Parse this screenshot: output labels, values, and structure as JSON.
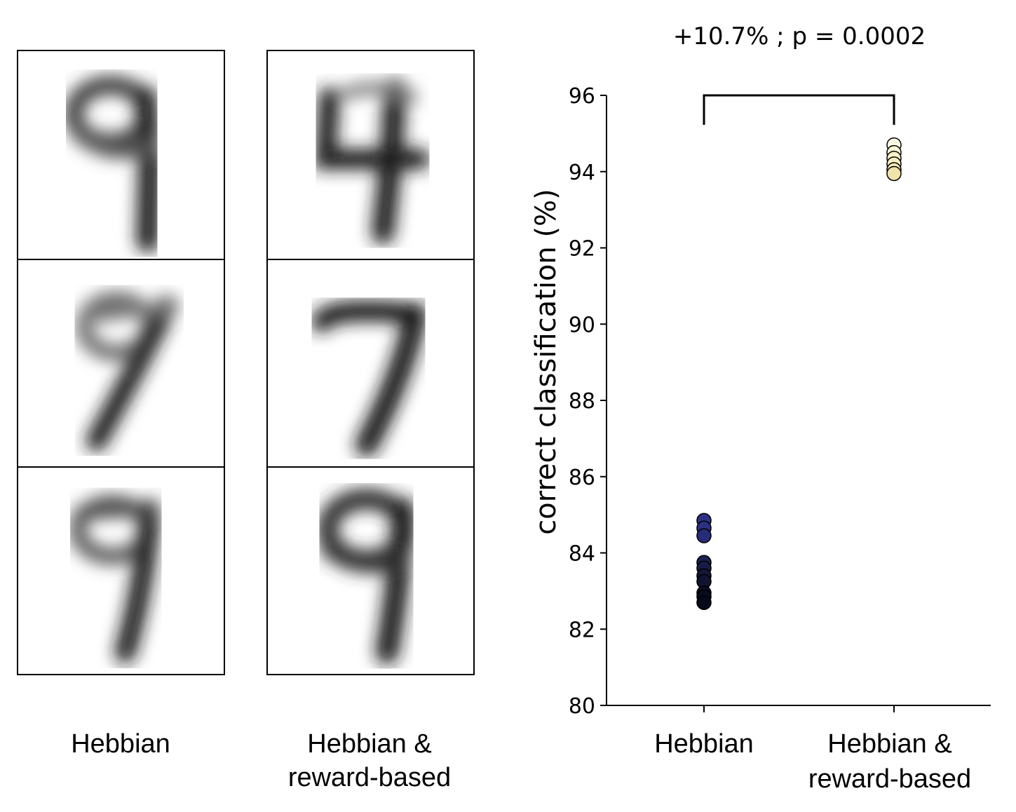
{
  "left_panels": {
    "hebbian_label": "Hebbian",
    "reward_label_line1": "Hebbian &",
    "reward_label_line2": "reward-based"
  },
  "chart_data": {
    "type": "scatter",
    "annotation": "+10.7%  ;  p = 0.0002",
    "ylabel": "correct classification (%)",
    "xlabel": "",
    "ylim": [
      80,
      96
    ],
    "yticks": [
      80,
      82,
      84,
      86,
      88,
      90,
      92,
      94,
      96
    ],
    "categories": [
      {
        "line1": "Hebbian",
        "line2": ""
      },
      {
        "line1": "Hebbian &",
        "line2": "reward-based"
      }
    ],
    "series": [
      {
        "category_index": 0,
        "points": [
          {
            "y": 84.85,
            "color": "#2c3385"
          },
          {
            "y": 84.65,
            "color": "#2a3180"
          },
          {
            "y": 84.45,
            "color": "#262d78"
          },
          {
            "y": 83.75,
            "color": "#1c2152"
          },
          {
            "y": 83.6,
            "color": "#181c46"
          },
          {
            "y": 83.4,
            "color": "#14173a"
          },
          {
            "y": 83.25,
            "color": "#111430"
          },
          {
            "y": 82.95,
            "color": "#0c0e24"
          },
          {
            "y": 82.85,
            "color": "#0a0b1c"
          },
          {
            "y": 82.7,
            "color": "#08091a"
          }
        ]
      },
      {
        "category_index": 1,
        "points": [
          {
            "y": 94.7,
            "color": "#fdfce6"
          },
          {
            "y": 94.5,
            "color": "#fbf8d8"
          },
          {
            "y": 94.35,
            "color": "#f8f2c8"
          },
          {
            "y": 94.2,
            "color": "#f6eebe"
          },
          {
            "y": 94.05,
            "color": "#f3e8b4"
          },
          {
            "y": 93.95,
            "color": "#f0e4aa"
          }
        ]
      }
    ],
    "significance_bracket": {
      "y": 96
    }
  }
}
